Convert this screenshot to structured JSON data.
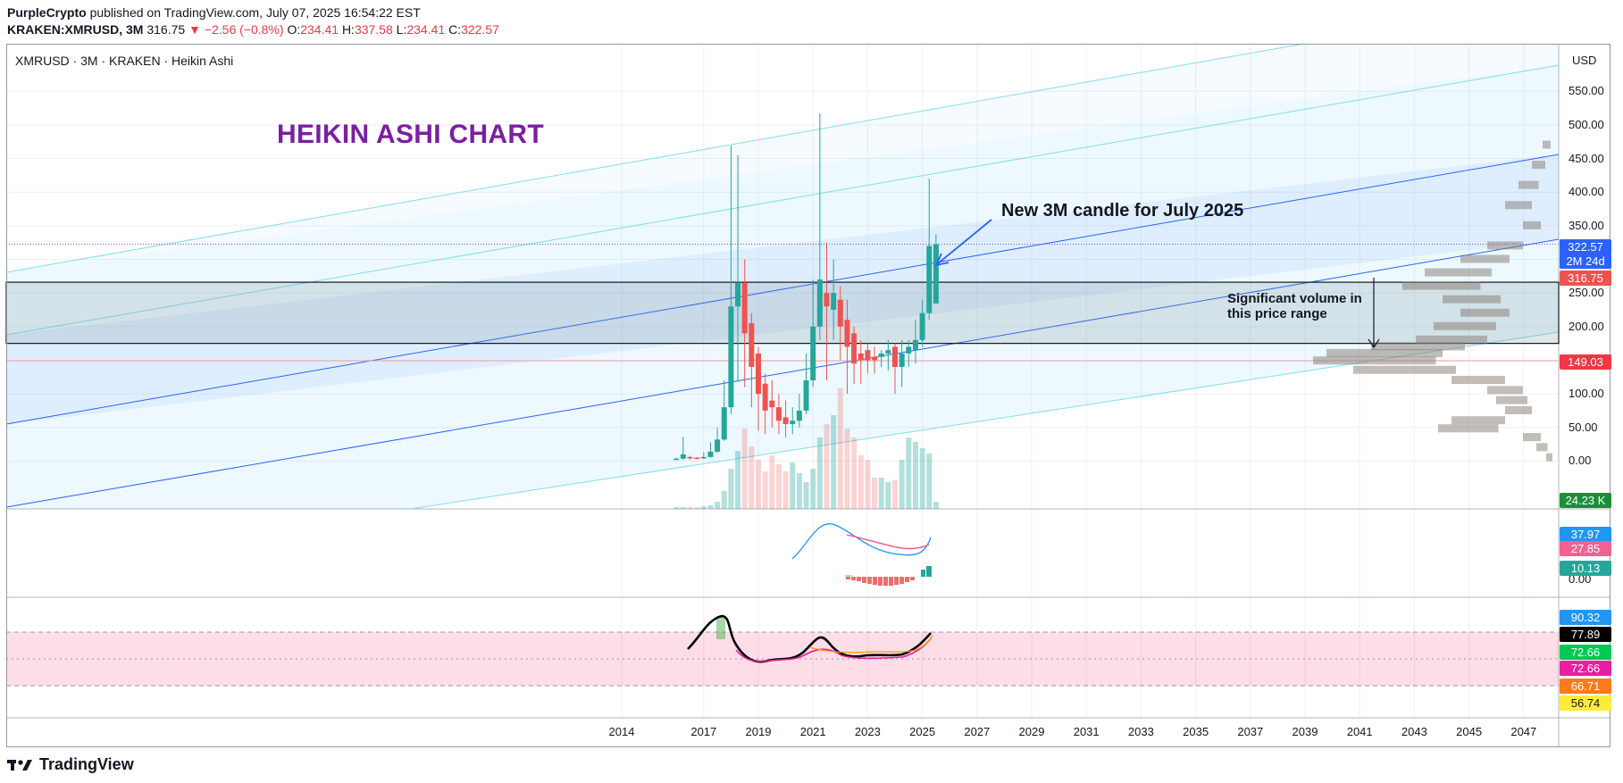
{
  "header": {
    "author": "PurpleCrypto",
    "published": "published on TradingView.com, July 07, 2025 16:54:22 EST",
    "symbol": "KRAKEN:XMRUSD, 3M",
    "last_price": "316.75",
    "change": "▼ −2.56 (−0.8%)",
    "o_label": "O:",
    "o_val": "234.41",
    "h_label": "H:",
    "h_val": "337.58",
    "l_label": "L:",
    "l_val": "234.41",
    "c_label": "C:",
    "c_val": "322.57"
  },
  "legend": "XMRUSD · 3M · KRAKEN · Heikin Ashi",
  "currency": "USD",
  "annotations": {
    "title": "HEIKIN ASHI CHART",
    "arrow_note": "New 3M candle for July 2025",
    "volume_note_line1": "Significant volume in",
    "volume_note_line2": "this price range"
  },
  "footer": {
    "brand": "TradingView"
  },
  "colors": {
    "up": "#26a69a",
    "down": "#ef5350",
    "channel": "#4fc3f7",
    "accent": "#7b1fa2"
  },
  "badges": [
    {
      "text": "322.57",
      "bg": "#2962ff"
    },
    {
      "text": "2M 24d",
      "bg": "#2962ff"
    },
    {
      "text": "316.75",
      "bg": "#ef5350"
    },
    {
      "text": "149.03",
      "bg": "#f23645"
    },
    {
      "text": "24.23 K",
      "bg": "#1b8f3a"
    },
    {
      "text": "37.97",
      "bg": "#2196f3"
    },
    {
      "text": "27.85",
      "bg": "#f06292"
    },
    {
      "text": "10.13",
      "bg": "#26a69a"
    },
    {
      "text": "90.32",
      "bg": "#2196f3"
    },
    {
      "text": "77.89",
      "bg": "#000000"
    },
    {
      "text": "72.66",
      "bg": "#00c853"
    },
    {
      "text": "72.66",
      "bg": "#e91ea0"
    },
    {
      "text": "66.71",
      "bg": "#ff7a1a"
    },
    {
      "text": "56.74",
      "bg": "#ffeb3b"
    }
  ],
  "chart_data": {
    "type": "candlestick",
    "style": "Heikin Ashi",
    "y_ticks": [
      "550.00",
      "500.00",
      "450.00",
      "400.00",
      "350.00",
      "250.00",
      "200.00",
      "100.00",
      "50.00",
      "0.00"
    ],
    "y_ticks_macd": [
      "0.00"
    ],
    "x_ticks": [
      "2014",
      "2017",
      "2019",
      "2021",
      "2023",
      "2025",
      "2027",
      "2029",
      "2031",
      "2033",
      "2035",
      "2037",
      "2039",
      "2041",
      "2043",
      "2045",
      "2047"
    ],
    "support_range": [
      175,
      266
    ],
    "horizontal_level": 149.03,
    "candles": [
      {
        "t": 2016.0,
        "o": 3,
        "h": 5,
        "l": 2,
        "c": 3.5
      },
      {
        "t": 2016.25,
        "o": 3.5,
        "h": 36,
        "l": 2,
        "c": 10
      },
      {
        "t": 2016.5,
        "o": 6,
        "h": 8,
        "l": 2,
        "c": 5
      },
      {
        "t": 2016.75,
        "o": 5,
        "h": 6,
        "l": 3,
        "c": 4
      },
      {
        "t": 2017.0,
        "o": 4,
        "h": 13,
        "l": 3,
        "c": 6
      },
      {
        "t": 2017.25,
        "o": 6,
        "h": 28,
        "l": 5,
        "c": 14
      },
      {
        "t": 2017.5,
        "o": 14,
        "h": 50,
        "l": 12,
        "c": 32
      },
      {
        "t": 2017.75,
        "o": 32,
        "h": 120,
        "l": 30,
        "c": 80
      },
      {
        "t": 2018.0,
        "o": 80,
        "h": 469,
        "l": 70,
        "c": 230
      },
      {
        "t": 2018.25,
        "o": 230,
        "h": 455,
        "l": 120,
        "c": 265
      },
      {
        "t": 2018.5,
        "o": 265,
        "h": 300,
        "l": 110,
        "c": 190
      },
      {
        "t": 2018.75,
        "o": 205,
        "h": 220,
        "l": 80,
        "c": 140
      },
      {
        "t": 2019.0,
        "o": 160,
        "h": 170,
        "l": 45,
        "c": 100
      },
      {
        "t": 2019.25,
        "o": 115,
        "h": 130,
        "l": 40,
        "c": 75
      },
      {
        "t": 2019.5,
        "o": 90,
        "h": 120,
        "l": 50,
        "c": 80
      },
      {
        "t": 2019.75,
        "o": 80,
        "h": 100,
        "l": 40,
        "c": 60
      },
      {
        "t": 2020.0,
        "o": 65,
        "h": 90,
        "l": 35,
        "c": 55
      },
      {
        "t": 2020.25,
        "o": 55,
        "h": 80,
        "l": 40,
        "c": 60
      },
      {
        "t": 2020.5,
        "o": 60,
        "h": 100,
        "l": 50,
        "c": 75
      },
      {
        "t": 2020.75,
        "o": 75,
        "h": 160,
        "l": 70,
        "c": 120
      },
      {
        "t": 2021.0,
        "o": 120,
        "h": 270,
        "l": 110,
        "c": 200
      },
      {
        "t": 2021.25,
        "o": 200,
        "h": 517,
        "l": 180,
        "c": 270
      },
      {
        "t": 2021.5,
        "o": 250,
        "h": 325,
        "l": 120,
        "c": 230
      },
      {
        "t": 2021.75,
        "o": 225,
        "h": 300,
        "l": 180,
        "c": 250
      },
      {
        "t": 2022.0,
        "o": 240,
        "h": 260,
        "l": 150,
        "c": 200
      },
      {
        "t": 2022.25,
        "o": 210,
        "h": 240,
        "l": 100,
        "c": 170
      },
      {
        "t": 2022.5,
        "o": 190,
        "h": 200,
        "l": 115,
        "c": 145
      },
      {
        "t": 2022.75,
        "o": 160,
        "h": 180,
        "l": 115,
        "c": 150
      },
      {
        "t": 2023.0,
        "o": 165,
        "h": 175,
        "l": 130,
        "c": 150
      },
      {
        "t": 2023.25,
        "o": 155,
        "h": 170,
        "l": 130,
        "c": 150
      },
      {
        "t": 2023.5,
        "o": 155,
        "h": 165,
        "l": 140,
        "c": 160
      },
      {
        "t": 2023.75,
        "o": 160,
        "h": 180,
        "l": 135,
        "c": 165
      },
      {
        "t": 2024.0,
        "o": 170,
        "h": 175,
        "l": 100,
        "c": 140
      },
      {
        "t": 2024.25,
        "o": 140,
        "h": 180,
        "l": 110,
        "c": 160
      },
      {
        "t": 2024.5,
        "o": 160,
        "h": 180,
        "l": 140,
        "c": 170
      },
      {
        "t": 2024.75,
        "o": 165,
        "h": 210,
        "l": 145,
        "c": 180
      },
      {
        "t": 2025.0,
        "o": 180,
        "h": 240,
        "l": 170,
        "c": 220
      },
      {
        "t": 2025.25,
        "o": 220,
        "h": 420,
        "l": 210,
        "c": 320
      },
      {
        "t": 2025.5,
        "o": 234.41,
        "h": 337.58,
        "l": 234.41,
        "c": 322.57
      }
    ],
    "volume_axis_label": "24.23 K",
    "macd": {
      "macd": 37.97,
      "signal": 27.85,
      "histogram": 10.13
    },
    "rsi_panel": {
      "values": [
        90.32,
        77.89,
        72.66,
        72.66,
        66.71,
        56.74
      ]
    }
  }
}
